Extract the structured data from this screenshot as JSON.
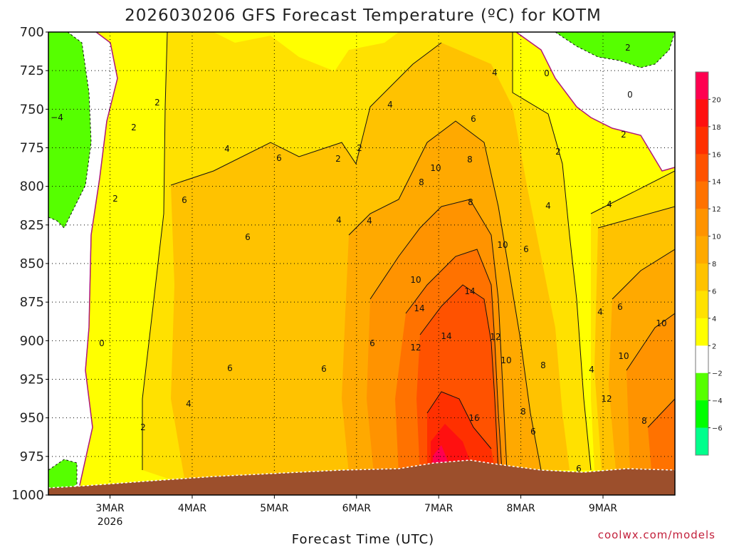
{
  "chart_data": {
    "type": "heatmap",
    "title": "2026030206 GFS Forecast Temperature (ºC) for KOTM",
    "xlabel": "Forecast Time (UTC)",
    "ylabel": "",
    "credit": "coolwx.com/models",
    "y_axis": {
      "reversed": true,
      "range": [
        700,
        1000
      ],
      "ticks": [
        "700",
        "725",
        "750",
        "775",
        "800",
        "825",
        "850",
        "875",
        "900",
        "925",
        "950",
        "975",
        "1000"
      ]
    },
    "x_axis": {
      "range_days": [
        "2026-03-02T06",
        "2026-03-09T21"
      ],
      "ticks": [
        {
          "label": "3MAR",
          "sub": "2026"
        },
        {
          "label": "4MAR",
          "sub": ""
        },
        {
          "label": "5MAR",
          "sub": ""
        },
        {
          "label": "6MAR",
          "sub": ""
        },
        {
          "label": "7MAR",
          "sub": ""
        },
        {
          "label": "8MAR",
          "sub": ""
        },
        {
          "label": "9MAR",
          "sub": ""
        }
      ]
    },
    "grid": true,
    "colorbar": {
      "placement": "right",
      "labels": [
        "20",
        "18",
        "16",
        "14",
        "12",
        "10",
        "8",
        "6",
        "4",
        "2",
        "−2",
        "−4",
        "−6"
      ],
      "colors": [
        "#ff0050",
        "#ff1010",
        "#ff3000",
        "#ff5200",
        "#ff7200",
        "#ff9300",
        "#ffa900",
        "#ffc200",
        "#ffe100",
        "#ffff00",
        "#ffffff",
        "#56ff00",
        "#00ff00",
        "#00ff8c"
      ]
    },
    "contour_labels": [
      "−4",
      "2",
      "2",
      "2",
      "2",
      "0",
      "2",
      "4",
      "4",
      "6",
      "6",
      "6",
      "4",
      "6",
      "2",
      "4",
      "6",
      "4",
      "8",
      "6",
      "8",
      "10",
      "6",
      "10",
      "8",
      "10",
      "12",
      "14",
      "14",
      "14",
      "12",
      "16",
      "10",
      "8",
      "6",
      "6",
      "4",
      "4",
      "2",
      "0",
      "0",
      "2",
      "2",
      "4",
      "6",
      "4",
      "8",
      "10",
      "12",
      "10",
      "8",
      "4",
      "6"
    ]
  }
}
